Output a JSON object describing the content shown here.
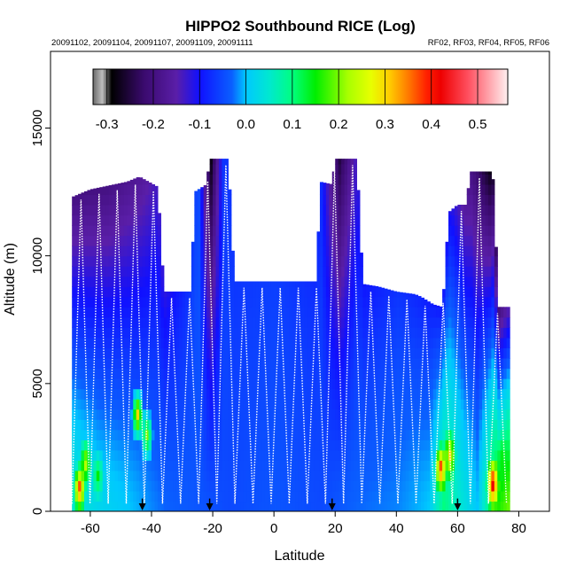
{
  "chart_data": {
    "type": "heatmap",
    "title": "HIPPO2 Southbound RICE (Log)",
    "dates_text": "20091102, 20091104, 20091107, 20091109, 20091111",
    "flights_text": "RF02, RF03, RF04, RF05, RF06",
    "xlabel": "Latitude",
    "ylabel": "Altitude (m)",
    "xlim": [
      -73,
      90
    ],
    "ylim": [
      0,
      18000
    ],
    "x_ticks": [
      -60,
      -40,
      -20,
      0,
      20,
      40,
      60,
      80
    ],
    "y_ticks": [
      0,
      5000,
      10000,
      15000
    ],
    "colorbar": {
      "min": -0.33,
      "max": 0.565,
      "tick_values": [
        -0.3,
        -0.2,
        -0.1,
        0.0,
        0.1,
        0.2,
        0.3,
        0.4,
        0.5
      ],
      "tick_labels": [
        "-0.3",
        "-0.2",
        "-0.1",
        "0.0",
        "0.1",
        "0.2",
        "0.3",
        "0.4",
        "0.5"
      ],
      "stops": [
        {
          "v": -0.33,
          "c": "#6a6a6a"
        },
        {
          "v": -0.31,
          "c": "#bdbdbd"
        },
        {
          "v": -0.29,
          "c": "#000000"
        },
        {
          "v": -0.22,
          "c": "#3a0a6e"
        },
        {
          "v": -0.15,
          "c": "#5a1ea8"
        },
        {
          "v": -0.1,
          "c": "#1010ff"
        },
        {
          "v": -0.03,
          "c": "#0a60ff"
        },
        {
          "v": 0.0,
          "c": "#00c8ff"
        },
        {
          "v": 0.05,
          "c": "#00e8d0"
        },
        {
          "v": 0.1,
          "c": "#00ff80"
        },
        {
          "v": 0.15,
          "c": "#00ee00"
        },
        {
          "v": 0.22,
          "c": "#a8ff00"
        },
        {
          "v": 0.27,
          "c": "#e8ff00"
        },
        {
          "v": 0.31,
          "c": "#ffcc00"
        },
        {
          "v": 0.35,
          "c": "#ff7a00"
        },
        {
          "v": 0.39,
          "c": "#ff2000"
        },
        {
          "v": 0.42,
          "c": "#ee0000"
        },
        {
          "v": 0.48,
          "c": "#ff5060"
        },
        {
          "v": 0.565,
          "c": "#fff0f0"
        }
      ]
    },
    "curtain": {
      "description_values_are_latitude_and_altitude_m": true,
      "ceiling": [
        [
          -66,
          12300
        ],
        [
          -60,
          12600
        ],
        [
          -52,
          12800
        ],
        [
          -48,
          12900
        ],
        [
          -44,
          13100
        ],
        [
          -38,
          12700
        ],
        [
          -36,
          8600
        ],
        [
          -27,
          8600
        ],
        [
          -26,
          12500
        ],
        [
          -22,
          12800
        ],
        [
          -21,
          13800
        ],
        [
          -15,
          13800
        ],
        [
          -13,
          9000
        ],
        [
          14,
          9000
        ],
        [
          15,
          12900
        ],
        [
          19,
          12800
        ],
        [
          20,
          13800
        ],
        [
          27,
          13800
        ],
        [
          29,
          8900
        ],
        [
          34,
          8800
        ],
        [
          40,
          8600
        ],
        [
          46,
          8500
        ],
        [
          48,
          8400
        ],
        [
          52,
          8100
        ],
        [
          55,
          8000
        ],
        [
          56,
          9400
        ],
        [
          57,
          11700
        ],
        [
          60,
          12000
        ],
        [
          63,
          12000
        ],
        [
          64,
          13300
        ],
        [
          71,
          13300
        ],
        [
          72,
          12700
        ],
        [
          73,
          8000
        ],
        [
          77,
          8000
        ]
      ],
      "upper_values": [
        [
          -66,
          -0.2
        ],
        [
          -55,
          -0.2
        ],
        [
          -44,
          -0.17
        ],
        [
          -36,
          -0.12
        ],
        [
          -25,
          -0.05
        ],
        [
          -21,
          -0.28
        ],
        [
          -17,
          -0.07
        ],
        [
          0,
          -0.06
        ],
        [
          15,
          -0.08
        ],
        [
          21,
          -0.25
        ],
        [
          28,
          -0.1
        ],
        [
          40,
          -0.07
        ],
        [
          55,
          -0.1
        ],
        [
          58,
          -0.12
        ],
        [
          62,
          -0.17
        ],
        [
          66,
          -0.22
        ],
        [
          70,
          -0.28
        ],
        [
          74,
          -0.2
        ],
        [
          77,
          -0.15
        ]
      ],
      "lower_values": [
        [
          -66,
          0.05
        ],
        [
          -58,
          0.02
        ],
        [
          -48,
          0.0
        ],
        [
          -36,
          -0.03
        ],
        [
          -25,
          -0.04
        ],
        [
          -15,
          -0.05
        ],
        [
          0,
          -0.04
        ],
        [
          15,
          -0.05
        ],
        [
          25,
          -0.03
        ],
        [
          40,
          -0.02
        ],
        [
          50,
          0.0
        ],
        [
          55,
          0.1
        ],
        [
          60,
          0.05
        ],
        [
          66,
          0.0
        ],
        [
          72,
          0.15
        ],
        [
          77,
          0.2
        ]
      ],
      "hotspots": [
        {
          "lat": -64,
          "alt": 700,
          "value": 0.4
        },
        {
          "lat": -62,
          "alt": 1700,
          "value": 0.25
        },
        {
          "lat": -58,
          "alt": 1200,
          "value": 0.15
        },
        {
          "lat": -45,
          "alt": 3600,
          "value": 0.3
        },
        {
          "lat": -42,
          "alt": 2800,
          "value": 0.2
        },
        {
          "lat": 54,
          "alt": 1500,
          "value": 0.4
        },
        {
          "lat": 57,
          "alt": 2000,
          "value": 0.3
        },
        {
          "lat": 71,
          "alt": 900,
          "value": 0.45
        },
        {
          "lat": 74,
          "alt": 1800,
          "value": 0.15
        }
      ],
      "profiles": [
        {
          "lat_start": -66,
          "lat_end": 76,
          "count": 48,
          "top_alt": "follows ceiling",
          "bottom_alt": 300
        }
      ]
    },
    "arrows_latitude": [
      -43,
      -21,
      19,
      60
    ]
  }
}
